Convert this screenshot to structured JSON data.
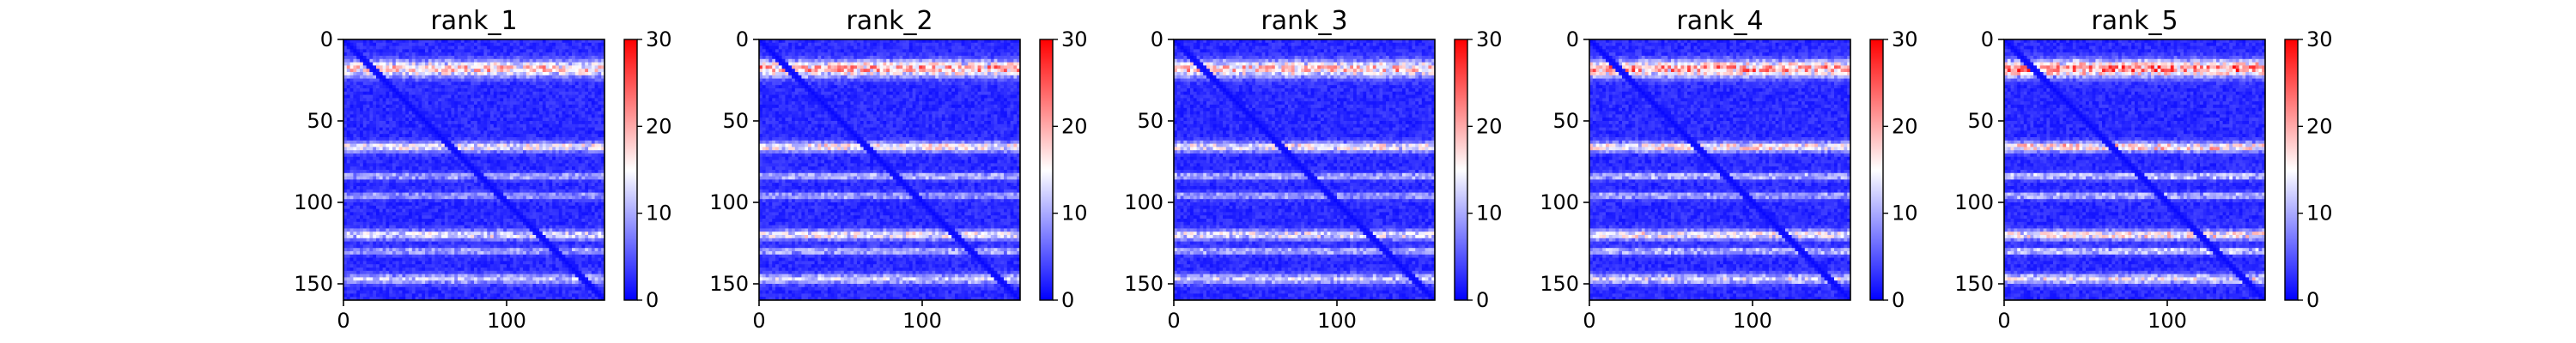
{
  "chart_data": [
    {
      "type": "heatmap",
      "title": "rank_1",
      "xlabel": "",
      "ylabel": "",
      "x_ticks": [
        0,
        100
      ],
      "y_ticks": [
        0,
        50,
        100,
        150
      ],
      "xlim": [
        0,
        160
      ],
      "ylim": [
        160,
        0
      ],
      "colorbar": {
        "range": [
          0,
          30
        ],
        "ticks": [
          0,
          10,
          20,
          30
        ],
        "colormap": "bwr"
      },
      "band_intensity": 1.0
    },
    {
      "type": "heatmap",
      "title": "rank_2",
      "xlabel": "",
      "ylabel": "",
      "x_ticks": [
        0,
        100
      ],
      "y_ticks": [
        0,
        50,
        100,
        150
      ],
      "xlim": [
        0,
        160
      ],
      "ylim": [
        160,
        0
      ],
      "colorbar": {
        "range": [
          0,
          30
        ],
        "ticks": [
          0,
          10,
          20,
          30
        ],
        "colormap": "bwr"
      },
      "band_intensity": 1.12
    },
    {
      "type": "heatmap",
      "title": "rank_3",
      "xlabel": "",
      "ylabel": "",
      "x_ticks": [
        0,
        100
      ],
      "y_ticks": [
        0,
        50,
        100,
        150
      ],
      "xlim": [
        0,
        160
      ],
      "ylim": [
        160,
        0
      ],
      "colorbar": {
        "range": [
          0,
          30
        ],
        "ticks": [
          0,
          10,
          20,
          30
        ],
        "colormap": "bwr"
      },
      "band_intensity": 1.05
    },
    {
      "type": "heatmap",
      "title": "rank_4",
      "xlabel": "",
      "ylabel": "",
      "x_ticks": [
        0,
        100
      ],
      "y_ticks": [
        0,
        50,
        100,
        150
      ],
      "xlim": [
        0,
        160
      ],
      "ylim": [
        160,
        0
      ],
      "colorbar": {
        "range": [
          0,
          30
        ],
        "ticks": [
          0,
          10,
          20,
          30
        ],
        "colormap": "bwr"
      },
      "band_intensity": 1.15
    },
    {
      "type": "heatmap",
      "title": "rank_5",
      "xlabel": "",
      "ylabel": "",
      "x_ticks": [
        0,
        100
      ],
      "y_ticks": [
        0,
        50,
        100,
        150
      ],
      "xlim": [
        0,
        160
      ],
      "ylim": [
        160,
        0
      ],
      "colorbar": {
        "range": [
          0,
          30
        ],
        "ticks": [
          0,
          10,
          20,
          30
        ],
        "colormap": "bwr"
      },
      "band_intensity": 1.25
    }
  ],
  "heatmap_pattern": {
    "base_value": 2.5,
    "diagonal_value": 0.5,
    "bright_row_bands": [
      {
        "center": 18,
        "width": 5,
        "value": 15
      },
      {
        "center": 66,
        "width": 3,
        "value": 12
      },
      {
        "center": 84,
        "width": 2,
        "value": 8
      },
      {
        "center": 96,
        "width": 2,
        "value": 7
      },
      {
        "center": 120,
        "width": 3,
        "value": 11
      },
      {
        "center": 130,
        "width": 2,
        "value": 8
      },
      {
        "center": 147,
        "width": 3,
        "value": 9
      }
    ]
  }
}
